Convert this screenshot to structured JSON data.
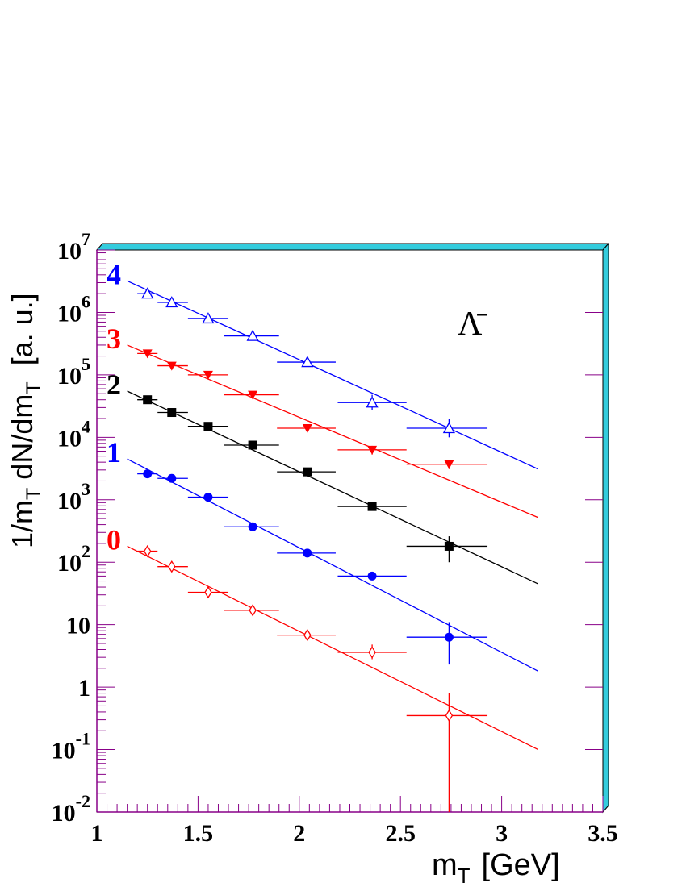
{
  "chart_data": {
    "type": "scatter",
    "title": "Λ̄",
    "xlabel": "m",
    "xlabel_sub": "T",
    "xlabel_unit": "[GeV]",
    "ylabel": "1/m",
    "ylabel_sub1": "T",
    "ylabel_mid": " dN/dm",
    "ylabel_sub2": "T",
    "ylabel_unit": "  [a. u.]",
    "xlim": [
      1,
      3.5
    ],
    "ylim": [
      0.01,
      10000000
    ],
    "y_scale": "log",
    "x_ticks": [
      {
        "value": 1,
        "label": "1"
      },
      {
        "value": 1.5,
        "label": "1.5"
      },
      {
        "value": 2,
        "label": "2"
      },
      {
        "value": 2.5,
        "label": "2.5"
      },
      {
        "value": 3,
        "label": "3"
      },
      {
        "value": 3.5,
        "label": "3.5"
      }
    ],
    "y_ticks": [
      {
        "exp": -2,
        "base": "10",
        "sup": "-2"
      },
      {
        "exp": -1,
        "base": "10",
        "sup": "-1"
      },
      {
        "exp": 0,
        "base": "1",
        "sup": ""
      },
      {
        "exp": 1,
        "base": "10",
        "sup": ""
      },
      {
        "exp": 2,
        "base": "10",
        "sup": "2"
      },
      {
        "exp": 3,
        "base": "10",
        "sup": "3"
      },
      {
        "exp": 4,
        "base": "10",
        "sup": "4"
      },
      {
        "exp": 5,
        "base": "10",
        "sup": "5"
      },
      {
        "exp": 6,
        "base": "10",
        "sup": "6"
      },
      {
        "exp": 7,
        "base": "10",
        "sup": "7"
      }
    ],
    "colors": {
      "frame_shadow": "#33ccdd",
      "axis": "#880088"
    },
    "series": [
      {
        "name": "0",
        "color": "#ff0000",
        "marker": "diamond-open",
        "fit": {
          "x0": 1.15,
          "y0": 180,
          "x1": 3.18,
          "y1": 0.1
        },
        "points": [
          {
            "x": 1.25,
            "y": 150,
            "xlo": 1.2,
            "xhi": 1.3,
            "ylo": 135,
            "yhi": 165
          },
          {
            "x": 1.37,
            "y": 85,
            "xlo": 1.3,
            "xhi": 1.45,
            "ylo": 75,
            "yhi": 95
          },
          {
            "x": 1.55,
            "y": 33,
            "xlo": 1.45,
            "xhi": 1.65,
            "ylo": 29,
            "yhi": 37
          },
          {
            "x": 1.77,
            "y": 17,
            "xlo": 1.63,
            "xhi": 1.9,
            "ylo": 15,
            "yhi": 19.5
          },
          {
            "x": 2.04,
            "y": 6.8,
            "xlo": 1.89,
            "xhi": 2.18,
            "ylo": 5.7,
            "yhi": 8
          },
          {
            "x": 2.36,
            "y": 3.6,
            "xlo": 2.19,
            "xhi": 2.53,
            "ylo": 2.8,
            "yhi": 4.8
          },
          {
            "x": 2.74,
            "y": 0.35,
            "xlo": 2.53,
            "xhi": 2.93,
            "ylo": 0.01,
            "yhi": 0.8
          }
        ]
      },
      {
        "name": "1",
        "color": "#0000ff",
        "marker": "circle",
        "fit": {
          "x0": 1.15,
          "y0": 4500,
          "x1": 3.18,
          "y1": 1.8
        },
        "points": [
          {
            "x": 1.25,
            "y": 2600,
            "xlo": 1.2,
            "xhi": 1.3,
            "ylo": 2400,
            "yhi": 2800
          },
          {
            "x": 1.37,
            "y": 2200,
            "xlo": 1.3,
            "xhi": 1.45,
            "ylo": 2000,
            "yhi": 2400
          },
          {
            "x": 1.55,
            "y": 1100,
            "xlo": 1.45,
            "xhi": 1.65,
            "ylo": 1000,
            "yhi": 1200
          },
          {
            "x": 1.77,
            "y": 370,
            "xlo": 1.63,
            "xhi": 1.9,
            "ylo": 340,
            "yhi": 400
          },
          {
            "x": 2.04,
            "y": 140,
            "xlo": 1.89,
            "xhi": 2.18,
            "ylo": 125,
            "yhi": 155
          },
          {
            "x": 2.36,
            "y": 60,
            "xlo": 2.19,
            "xhi": 2.53,
            "ylo": 53,
            "yhi": 67
          },
          {
            "x": 2.74,
            "y": 6.3,
            "xlo": 2.53,
            "xhi": 2.93,
            "ylo": 2.3,
            "yhi": 11
          }
        ]
      },
      {
        "name": "2",
        "color": "#000000",
        "marker": "square",
        "fit": {
          "x0": 1.15,
          "y0": 55000,
          "x1": 3.18,
          "y1": 45
        },
        "points": [
          {
            "x": 1.25,
            "y": 40000,
            "xlo": 1.2,
            "xhi": 1.3,
            "ylo": 37000,
            "yhi": 43000
          },
          {
            "x": 1.37,
            "y": 25000,
            "xlo": 1.3,
            "xhi": 1.45,
            "ylo": 23000,
            "yhi": 27000
          },
          {
            "x": 1.55,
            "y": 15000,
            "xlo": 1.45,
            "xhi": 1.65,
            "ylo": 14000,
            "yhi": 16000
          },
          {
            "x": 1.77,
            "y": 7500,
            "xlo": 1.63,
            "xhi": 1.9,
            "ylo": 7000,
            "yhi": 8000
          },
          {
            "x": 2.04,
            "y": 2800,
            "xlo": 1.89,
            "xhi": 2.18,
            "ylo": 2600,
            "yhi": 3000
          },
          {
            "x": 2.36,
            "y": 780,
            "xlo": 2.19,
            "xhi": 2.53,
            "ylo": 680,
            "yhi": 880
          },
          {
            "x": 2.74,
            "y": 180,
            "xlo": 2.53,
            "xhi": 2.93,
            "ylo": 100,
            "yhi": 260
          }
        ]
      },
      {
        "name": "3",
        "color": "#ff0000",
        "marker": "triangle-down",
        "fit": {
          "x0": 1.15,
          "y0": 300000,
          "x1": 3.18,
          "y1": 520
        },
        "points": [
          {
            "x": 1.25,
            "y": 220000,
            "xlo": 1.2,
            "xhi": 1.3,
            "ylo": 205000,
            "yhi": 235000
          },
          {
            "x": 1.37,
            "y": 140000,
            "xlo": 1.3,
            "xhi": 1.45,
            "ylo": 130000,
            "yhi": 150000
          },
          {
            "x": 1.55,
            "y": 100000,
            "xlo": 1.45,
            "xhi": 1.65,
            "ylo": 93000,
            "yhi": 107000
          },
          {
            "x": 1.77,
            "y": 48000,
            "xlo": 1.63,
            "xhi": 1.9,
            "ylo": 44000,
            "yhi": 52000
          },
          {
            "x": 2.04,
            "y": 14000,
            "xlo": 1.89,
            "xhi": 2.18,
            "ylo": 13000,
            "yhi": 15000
          },
          {
            "x": 2.36,
            "y": 6300,
            "xlo": 2.19,
            "xhi": 2.53,
            "ylo": 5300,
            "yhi": 7300
          },
          {
            "x": 2.74,
            "y": 3700,
            "xlo": 2.53,
            "xhi": 2.93,
            "ylo": 3100,
            "yhi": 4300
          }
        ]
      },
      {
        "name": "4",
        "color": "#0000ff",
        "marker": "triangle-up-open",
        "fit": {
          "x0": 1.15,
          "y0": 3200000,
          "x1": 3.18,
          "y1": 3100
        },
        "points": [
          {
            "x": 1.25,
            "y": 2000000,
            "xlo": 1.2,
            "xhi": 1.3,
            "ylo": 1850000,
            "yhi": 2150000
          },
          {
            "x": 1.37,
            "y": 1450000,
            "xlo": 1.3,
            "xhi": 1.45,
            "ylo": 1350000,
            "yhi": 1550000
          },
          {
            "x": 1.55,
            "y": 800000,
            "xlo": 1.45,
            "xhi": 1.65,
            "ylo": 740000,
            "yhi": 860000
          },
          {
            "x": 1.77,
            "y": 420000,
            "xlo": 1.63,
            "xhi": 1.9,
            "ylo": 390000,
            "yhi": 450000
          },
          {
            "x": 2.04,
            "y": 160000,
            "xlo": 1.89,
            "xhi": 2.18,
            "ylo": 145000,
            "yhi": 175000
          },
          {
            "x": 2.36,
            "y": 36000,
            "xlo": 2.19,
            "xhi": 2.53,
            "ylo": 27000,
            "yhi": 48000
          },
          {
            "x": 2.74,
            "y": 14000,
            "xlo": 2.53,
            "xhi": 2.93,
            "ylo": 10000,
            "yhi": 20000
          }
        ]
      }
    ]
  }
}
